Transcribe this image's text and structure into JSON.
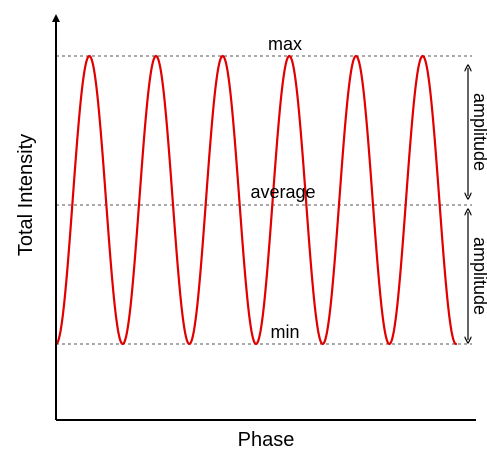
{
  "chart_data": {
    "type": "line",
    "title": "",
    "xlabel": "Phase",
    "ylabel": "Total Intensity",
    "grid": false,
    "legend": "none",
    "series": [
      {
        "cycles": 6,
        "shape": "cosine",
        "color": "#e00000"
      }
    ],
    "ylim": [
      -1.5,
      1.0
    ],
    "reference_lines": [
      {
        "label": "max",
        "y": 1
      },
      {
        "label": "average",
        "y": 0
      },
      {
        "label": "min",
        "y": -1
      }
    ],
    "annotations": [
      {
        "text": "amplitude",
        "from": 1,
        "to": 0
      },
      {
        "text": "amplitude",
        "from": 0,
        "to": -1
      }
    ],
    "colors": {
      "axis": "#000000",
      "reference_line": "#555555",
      "wave": "#e00000"
    }
  }
}
